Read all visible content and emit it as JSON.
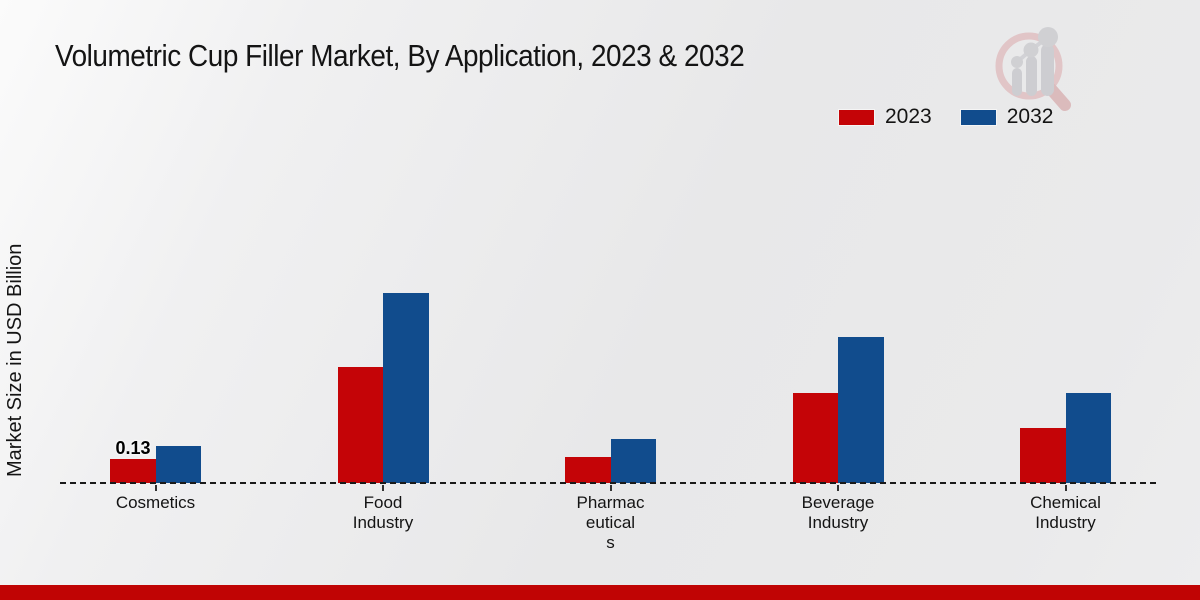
{
  "title": "Volumetric Cup Filler Market, By Application, 2023 & 2032",
  "y_axis_label": "Market Size in USD Billion",
  "legend": {
    "items": [
      {
        "label": "2023",
        "color": "#c40407"
      },
      {
        "label": "2032",
        "color": "#114c8d"
      }
    ]
  },
  "watermark_icon": "magnifier-growth-chart-logo",
  "footer": {
    "bar_color": "#c00404"
  },
  "chart_data": {
    "type": "bar",
    "title": "Volumetric Cup Filler Market, By Application, 2023 & 2032",
    "xlabel": "",
    "ylabel": "Market Size in USD Billion",
    "categories": [
      "Cosmetics",
      "Food Industry",
      "Pharmaceuticals",
      "Beverage Industry",
      "Chemical Industry"
    ],
    "category_label_lines": [
      [
        "Cosmetics"
      ],
      [
        "Food",
        "Industry"
      ],
      [
        "Pharmac",
        "eutical",
        "s"
      ],
      [
        "Beverage",
        "Industry"
      ],
      [
        "Chemical",
        "Industry"
      ]
    ],
    "series": [
      {
        "name": "2023",
        "color": "#c40407",
        "values": [
          0.13,
          0.63,
          0.14,
          0.49,
          0.3
        ]
      },
      {
        "name": "2032",
        "color": "#114c8d",
        "values": [
          0.2,
          1.03,
          0.24,
          0.79,
          0.49
        ]
      }
    ],
    "data_labels": [
      {
        "series": "2023",
        "category": "Cosmetics",
        "text": "0.13"
      }
    ],
    "ylim": [
      0,
      1.1
    ],
    "grid": false,
    "axis_line": "dashed-baseline",
    "legend_position": "top-right"
  }
}
